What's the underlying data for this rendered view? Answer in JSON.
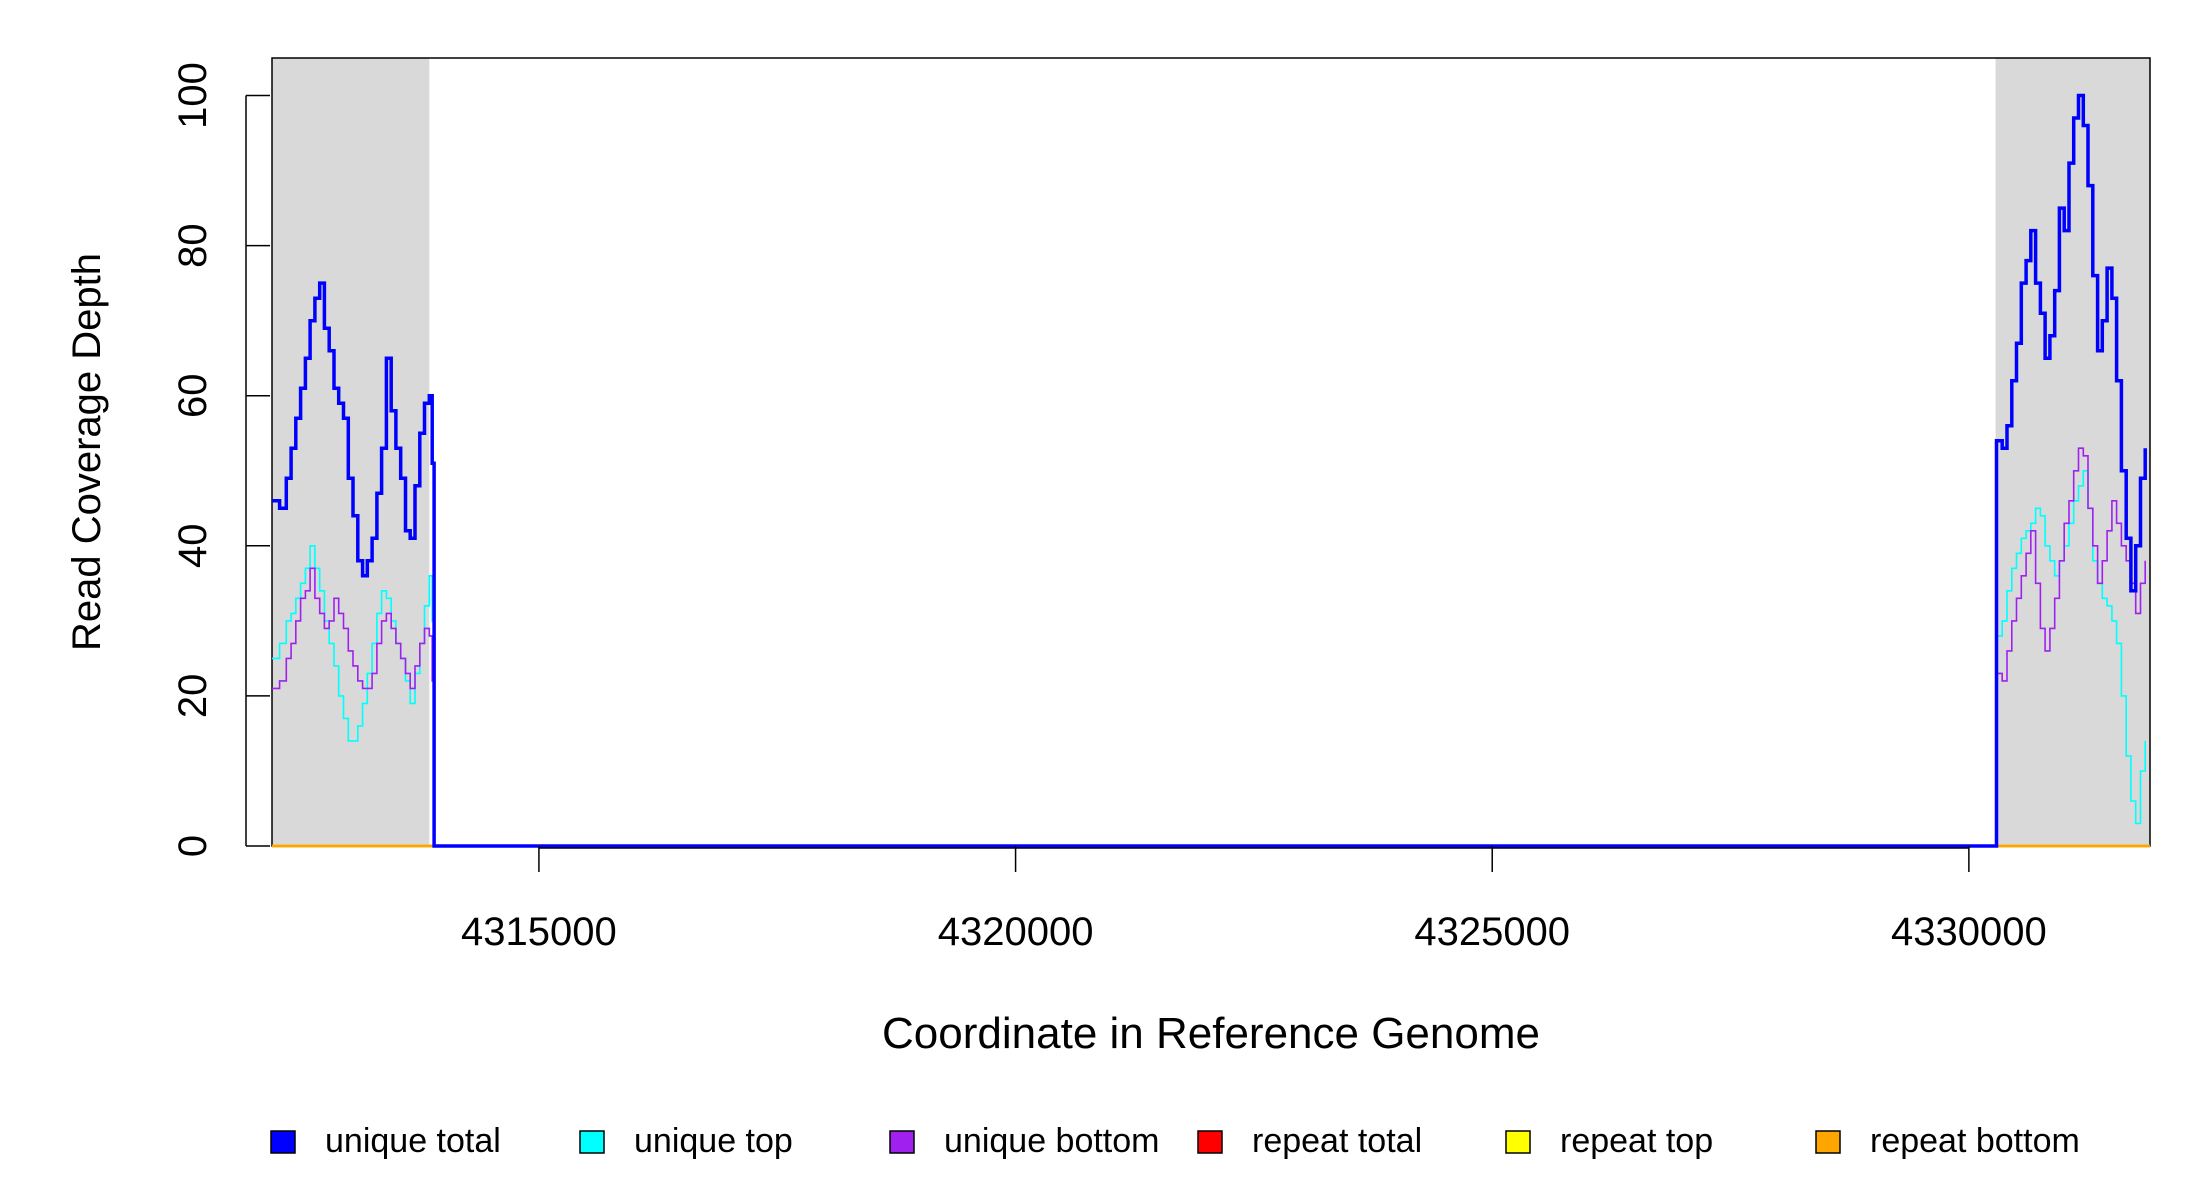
{
  "chart_data": {
    "type": "line",
    "xlabel": "Coordinate in Reference Genome",
    "ylabel": "Read Coverage Depth",
    "xlim": [
      4312200,
      4331900
    ],
    "ylim": [
      0,
      105
    ],
    "x_ticks": [
      4315000,
      4320000,
      4325000,
      4330000
    ],
    "y_ticks": [
      0,
      20,
      40,
      60,
      80,
      100
    ],
    "grid": false,
    "legend_position": "bottom",
    "shaded_regions": [
      {
        "x0": 4312200,
        "x1": 4313850,
        "color": "#d9d9d9"
      },
      {
        "x0": 4330280,
        "x1": 4331900,
        "color": "#d9d9d9"
      }
    ],
    "series": [
      {
        "name": "unique total",
        "color": "#0000ff",
        "points": [
          [
            4312200,
            46
          ],
          [
            4312280,
            45
          ],
          [
            4312350,
            49
          ],
          [
            4312400,
            53
          ],
          [
            4312450,
            57
          ],
          [
            4312500,
            61
          ],
          [
            4312550,
            65
          ],
          [
            4312600,
            70
          ],
          [
            4312650,
            73
          ],
          [
            4312700,
            75
          ],
          [
            4312750,
            69
          ],
          [
            4312800,
            66
          ],
          [
            4312850,
            61
          ],
          [
            4312900,
            59
          ],
          [
            4312950,
            57
          ],
          [
            4313000,
            49
          ],
          [
            4313050,
            44
          ],
          [
            4313100,
            38
          ],
          [
            4313150,
            36
          ],
          [
            4313200,
            38
          ],
          [
            4313250,
            41
          ],
          [
            4313300,
            47
          ],
          [
            4313350,
            53
          ],
          [
            4313400,
            65
          ],
          [
            4313450,
            58
          ],
          [
            4313500,
            53
          ],
          [
            4313550,
            49
          ],
          [
            4313600,
            42
          ],
          [
            4313650,
            41
          ],
          [
            4313700,
            48
          ],
          [
            4313750,
            55
          ],
          [
            4313800,
            59
          ],
          [
            4313850,
            60
          ],
          [
            4313880,
            51
          ],
          [
            4313900,
            0
          ],
          [
            4330280,
            0
          ],
          [
            4330290,
            54
          ],
          [
            4330350,
            53
          ],
          [
            4330400,
            56
          ],
          [
            4330450,
            62
          ],
          [
            4330500,
            67
          ],
          [
            4330550,
            75
          ],
          [
            4330600,
            78
          ],
          [
            4330650,
            82
          ],
          [
            4330700,
            75
          ],
          [
            4330750,
            71
          ],
          [
            4330800,
            65
          ],
          [
            4330850,
            68
          ],
          [
            4330900,
            74
          ],
          [
            4330950,
            85
          ],
          [
            4331000,
            82
          ],
          [
            4331050,
            91
          ],
          [
            4331100,
            97
          ],
          [
            4331150,
            100
          ],
          [
            4331200,
            96
          ],
          [
            4331250,
            88
          ],
          [
            4331300,
            76
          ],
          [
            4331350,
            66
          ],
          [
            4331400,
            70
          ],
          [
            4331450,
            77
          ],
          [
            4331500,
            73
          ],
          [
            4331550,
            62
          ],
          [
            4331600,
            50
          ],
          [
            4331650,
            41
          ],
          [
            4331700,
            34
          ],
          [
            4331750,
            40
          ],
          [
            4331800,
            49
          ],
          [
            4331850,
            53
          ]
        ]
      },
      {
        "name": "unique top",
        "color": "#00ffff",
        "points": [
          [
            4312200,
            25
          ],
          [
            4312280,
            27
          ],
          [
            4312350,
            30
          ],
          [
            4312400,
            31
          ],
          [
            4312450,
            33
          ],
          [
            4312500,
            35
          ],
          [
            4312550,
            37
          ],
          [
            4312600,
            40
          ],
          [
            4312650,
            37
          ],
          [
            4312700,
            34
          ],
          [
            4312750,
            30
          ],
          [
            4312800,
            27
          ],
          [
            4312850,
            24
          ],
          [
            4312900,
            20
          ],
          [
            4312950,
            17
          ],
          [
            4313000,
            14
          ],
          [
            4313050,
            14
          ],
          [
            4313100,
            16
          ],
          [
            4313150,
            19
          ],
          [
            4313200,
            23
          ],
          [
            4313250,
            27
          ],
          [
            4313300,
            31
          ],
          [
            4313350,
            34
          ],
          [
            4313400,
            33
          ],
          [
            4313450,
            30
          ],
          [
            4313500,
            27
          ],
          [
            4313550,
            25
          ],
          [
            4313600,
            22
          ],
          [
            4313650,
            19
          ],
          [
            4313700,
            23
          ],
          [
            4313750,
            27
          ],
          [
            4313800,
            32
          ],
          [
            4313850,
            36
          ],
          [
            4313880,
            30
          ],
          [
            4313900,
            0
          ],
          [
            4330280,
            0
          ],
          [
            4330290,
            28
          ],
          [
            4330350,
            30
          ],
          [
            4330400,
            34
          ],
          [
            4330450,
            37
          ],
          [
            4330500,
            39
          ],
          [
            4330550,
            41
          ],
          [
            4330600,
            42
          ],
          [
            4330650,
            43
          ],
          [
            4330700,
            45
          ],
          [
            4330750,
            44
          ],
          [
            4330800,
            40
          ],
          [
            4330850,
            38
          ],
          [
            4330900,
            36
          ],
          [
            4330950,
            38
          ],
          [
            4331000,
            40
          ],
          [
            4331050,
            43
          ],
          [
            4331100,
            46
          ],
          [
            4331150,
            48
          ],
          [
            4331200,
            50
          ],
          [
            4331250,
            45
          ],
          [
            4331300,
            38
          ],
          [
            4331350,
            35
          ],
          [
            4331400,
            33
          ],
          [
            4331450,
            32
          ],
          [
            4331500,
            30
          ],
          [
            4331550,
            27
          ],
          [
            4331600,
            20
          ],
          [
            4331650,
            12
          ],
          [
            4331700,
            6
          ],
          [
            4331750,
            3
          ],
          [
            4331800,
            10
          ],
          [
            4331850,
            14
          ]
        ]
      },
      {
        "name": "unique bottom",
        "color": "#a020f0",
        "points": [
          [
            4312200,
            21
          ],
          [
            4312280,
            22
          ],
          [
            4312350,
            25
          ],
          [
            4312400,
            27
          ],
          [
            4312450,
            30
          ],
          [
            4312500,
            33
          ],
          [
            4312550,
            34
          ],
          [
            4312600,
            37
          ],
          [
            4312650,
            33
          ],
          [
            4312700,
            31
          ],
          [
            4312750,
            29
          ],
          [
            4312800,
            30
          ],
          [
            4312850,
            33
          ],
          [
            4312900,
            31
          ],
          [
            4312950,
            29
          ],
          [
            4313000,
            26
          ],
          [
            4313050,
            24
          ],
          [
            4313100,
            22
          ],
          [
            4313150,
            21
          ],
          [
            4313200,
            21
          ],
          [
            4313250,
            23
          ],
          [
            4313300,
            27
          ],
          [
            4313350,
            30
          ],
          [
            4313400,
            31
          ],
          [
            4313450,
            29
          ],
          [
            4313500,
            27
          ],
          [
            4313550,
            25
          ],
          [
            4313600,
            23
          ],
          [
            4313650,
            21
          ],
          [
            4313700,
            24
          ],
          [
            4313750,
            27
          ],
          [
            4313800,
            29
          ],
          [
            4313850,
            28
          ],
          [
            4313880,
            22
          ],
          [
            4313900,
            0
          ],
          [
            4330280,
            0
          ],
          [
            4330290,
            23
          ],
          [
            4330350,
            22
          ],
          [
            4330400,
            26
          ],
          [
            4330450,
            30
          ],
          [
            4330500,
            33
          ],
          [
            4330550,
            36
          ],
          [
            4330600,
            39
          ],
          [
            4330650,
            42
          ],
          [
            4330700,
            35
          ],
          [
            4330750,
            29
          ],
          [
            4330800,
            26
          ],
          [
            4330850,
            29
          ],
          [
            4330900,
            33
          ],
          [
            4330950,
            38
          ],
          [
            4331000,
            43
          ],
          [
            4331050,
            46
          ],
          [
            4331100,
            50
          ],
          [
            4331150,
            53
          ],
          [
            4331200,
            52
          ],
          [
            4331250,
            45
          ],
          [
            4331300,
            40
          ],
          [
            4331350,
            35
          ],
          [
            4331400,
            38
          ],
          [
            4331450,
            42
          ],
          [
            4331500,
            46
          ],
          [
            4331550,
            43
          ],
          [
            4331600,
            40
          ],
          [
            4331650,
            38
          ],
          [
            4331700,
            35
          ],
          [
            4331750,
            31
          ],
          [
            4331800,
            35
          ],
          [
            4331850,
            38
          ]
        ]
      },
      {
        "name": "repeat total",
        "color": "#ff0000",
        "points": [
          [
            4312200,
            0
          ],
          [
            4331900,
            0
          ]
        ]
      },
      {
        "name": "repeat top",
        "color": "#ffff00",
        "points": [
          [
            4312200,
            0
          ],
          [
            4331900,
            0
          ]
        ]
      },
      {
        "name": "repeat bottom",
        "color": "#ffa500",
        "points": [
          [
            4312200,
            0
          ],
          [
            4331900,
            0
          ]
        ]
      }
    ]
  }
}
